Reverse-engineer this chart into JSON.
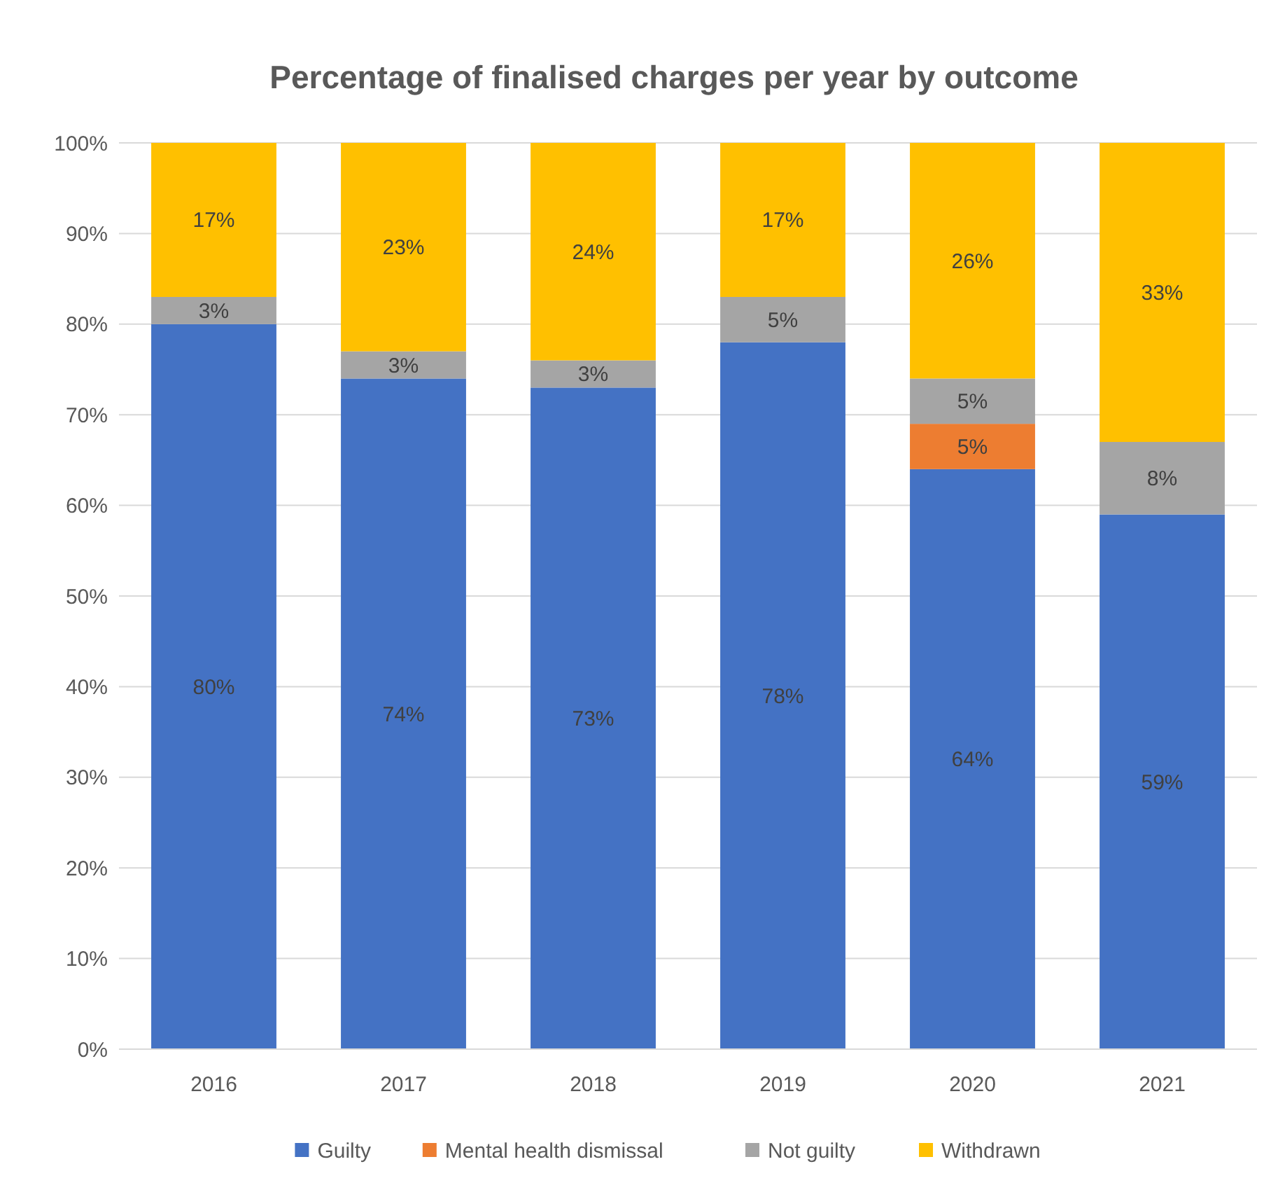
{
  "chart_data": {
    "type": "bar",
    "title": "Percentage of finalised charges per year by outcome",
    "categories": [
      "2016",
      "2017",
      "2018",
      "2019",
      "2020",
      "2021"
    ],
    "stacked": true,
    "series": [
      {
        "name": "Guilty",
        "color": "#4472c4",
        "values": [
          80,
          74,
          73,
          78,
          64,
          59
        ],
        "value_labels": [
          "80%",
          "74%",
          "73%",
          "78%",
          "64%",
          "59%"
        ]
      },
      {
        "name": "Mental health dismissal",
        "color": "#ed7d31",
        "values": [
          null,
          null,
          null,
          null,
          5,
          null
        ],
        "value_labels": [
          null,
          null,
          null,
          null,
          "5%",
          null
        ]
      },
      {
        "name": "Not guilty",
        "color": "#a5a5a5",
        "values": [
          3,
          3,
          3,
          5,
          5,
          8
        ],
        "value_labels": [
          "3%",
          "3%",
          "3%",
          "5%",
          "5%",
          "8%"
        ]
      },
      {
        "name": "Withdrawn",
        "color": "#ffc000",
        "values": [
          17,
          23,
          24,
          17,
          26,
          33
        ],
        "value_labels": [
          "17%",
          "23%",
          "24%",
          "17%",
          "26%",
          "33%"
        ]
      }
    ],
    "ylim": [
      0,
      100
    ],
    "yticks": [
      {
        "value": 0,
        "label": "0%"
      },
      {
        "value": 10,
        "label": "10%"
      },
      {
        "value": 20,
        "label": "20%"
      },
      {
        "value": 30,
        "label": "30%"
      },
      {
        "value": 40,
        "label": "40%"
      },
      {
        "value": 50,
        "label": "50%"
      },
      {
        "value": 60,
        "label": "60%"
      },
      {
        "value": 70,
        "label": "70%"
      },
      {
        "value": 80,
        "label": "80%"
      },
      {
        "value": 90,
        "label": "90%"
      },
      {
        "value": 100,
        "label": "100%"
      }
    ],
    "grid": "y",
    "legend": "bottom"
  }
}
